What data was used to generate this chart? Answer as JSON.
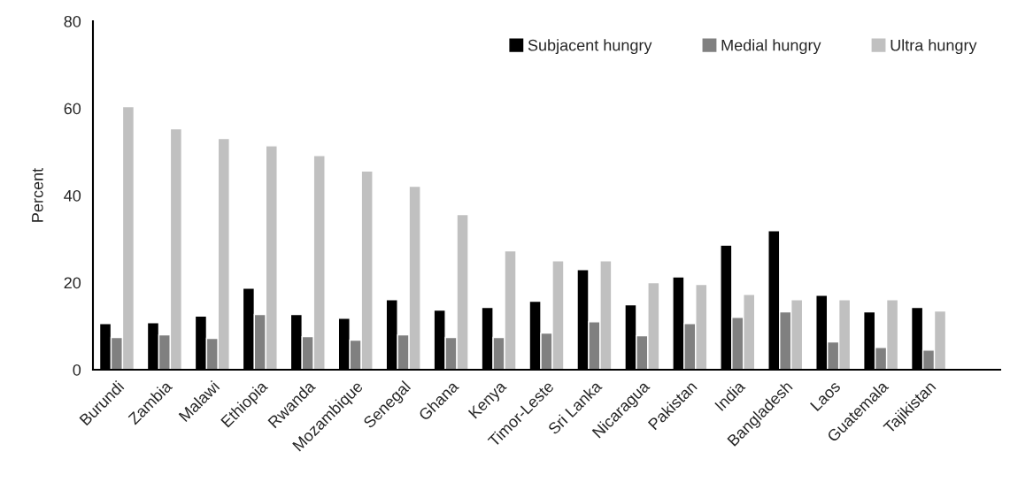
{
  "chart_data": {
    "type": "bar",
    "ylabel": "Percent",
    "categories": [
      "Burundi",
      "Zambia",
      "Malawi",
      "Ethiopia",
      "Rwanda",
      "Mozambique",
      "Senegal",
      "Ghana",
      "Kenya",
      "Timor-Leste",
      "Sri Lanka",
      "Nicaragua",
      "Pakistan",
      "India",
      "Bangladesh",
      "Laos",
      "Guatemala",
      "Tajikistan",
      null
    ],
    "series": [
      {
        "name": "Subjacent hungry",
        "color": "#000000",
        "values": [
          10.6,
          10.8,
          12.3,
          18.7,
          12.7,
          11.8,
          16.1,
          13.7,
          14.3,
          15.7,
          23.0,
          14.9,
          21.3,
          28.6,
          31.9,
          17.1,
          13.3,
          14.3,
          null
        ]
      },
      {
        "name": "Medial hungry",
        "color": "#808080",
        "values": [
          7.4,
          8.0,
          7.2,
          12.7,
          7.6,
          6.8,
          8.0,
          7.4,
          7.4,
          8.4,
          11.0,
          7.8,
          10.6,
          12.0,
          13.3,
          6.4,
          5.1,
          4.5,
          null
        ]
      },
      {
        "name": "Ultra hungry",
        "color": "#c0c0c0",
        "values": [
          60.4,
          55.3,
          53.1,
          51.4,
          49.2,
          45.6,
          42.1,
          35.6,
          27.3,
          25.0,
          25.0,
          20.0,
          19.6,
          17.3,
          16.1,
          16.1,
          16.1,
          13.5,
          null
        ]
      }
    ],
    "ylim": [
      0,
      80
    ],
    "yticks": [
      0,
      20,
      40,
      60,
      80
    ],
    "grid": false,
    "legend": "top right"
  }
}
